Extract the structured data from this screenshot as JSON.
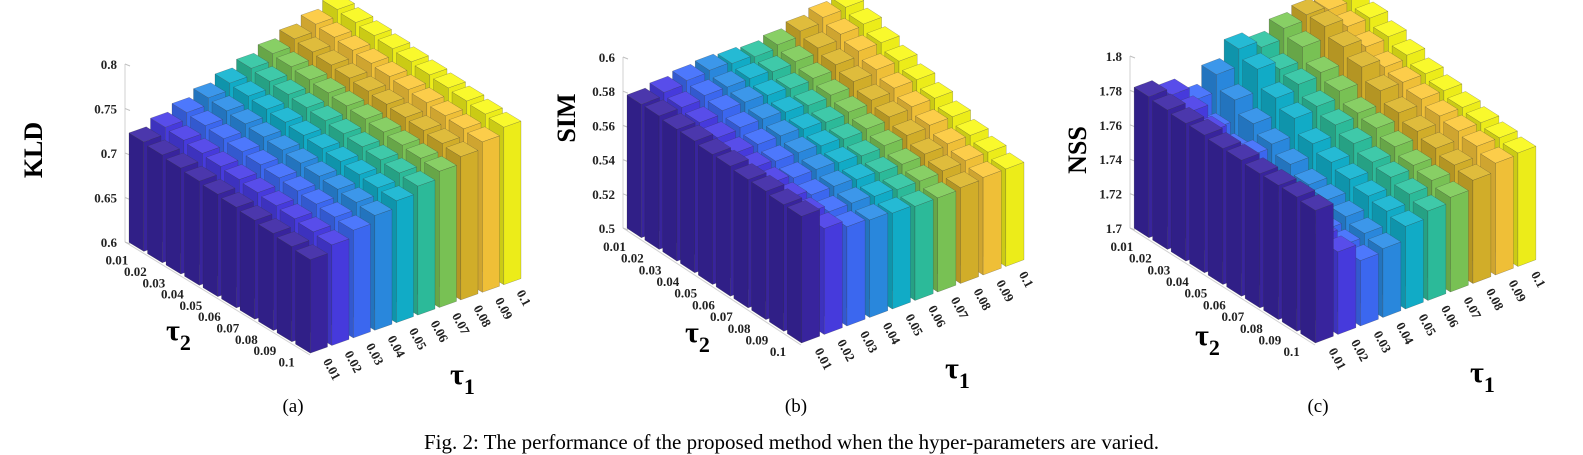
{
  "caption": "Fig. 2: The performance of the proposed method when the hyper-parameters are varied.",
  "panels": [
    {
      "label": "(a)"
    },
    {
      "label": "(b)"
    },
    {
      "label": "(c)"
    }
  ],
  "colors": [
    "#3b26a5",
    "#4a3de8",
    "#3e6cfc",
    "#2b8ee8",
    "#12b4d0",
    "#2ec4a1",
    "#7ecb58",
    "#dcb62b",
    "#fcc93a",
    "#f8f81a"
  ],
  "chart_data": [
    {
      "type": "bar3d",
      "zlabel": "KLD",
      "xlabel": "τ1",
      "ylabel": "τ2",
      "x_categories": [
        "0.01",
        "0.02",
        "0.03",
        "0.04",
        "0.05",
        "0.06",
        "0.07",
        "0.08",
        "0.09",
        "0.1"
      ],
      "y_categories": [
        "0.01",
        "0.02",
        "0.03",
        "0.04",
        "0.05",
        "0.06",
        "0.07",
        "0.08",
        "0.09",
        "0.1"
      ],
      "zlim": [
        0.6,
        0.8
      ],
      "zticks": [
        "0.6",
        "0.65",
        "0.7",
        "0.75",
        "0.8"
      ],
      "values": [
        [
          0.723,
          0.731,
          0.739,
          0.747,
          0.755,
          0.763,
          0.771,
          0.779,
          0.787,
          0.795
        ],
        [
          0.721,
          0.729,
          0.737,
          0.745,
          0.753,
          0.761,
          0.769,
          0.777,
          0.785,
          0.793
        ],
        [
          0.719,
          0.727,
          0.735,
          0.743,
          0.751,
          0.759,
          0.767,
          0.775,
          0.783,
          0.791
        ],
        [
          0.717,
          0.725,
          0.733,
          0.741,
          0.749,
          0.757,
          0.765,
          0.773,
          0.781,
          0.789
        ],
        [
          0.715,
          0.723,
          0.731,
          0.739,
          0.747,
          0.755,
          0.763,
          0.771,
          0.779,
          0.787
        ],
        [
          0.713,
          0.721,
          0.729,
          0.737,
          0.745,
          0.753,
          0.761,
          0.769,
          0.777,
          0.785
        ],
        [
          0.711,
          0.719,
          0.727,
          0.735,
          0.743,
          0.751,
          0.759,
          0.767,
          0.775,
          0.783
        ],
        [
          0.709,
          0.717,
          0.725,
          0.733,
          0.741,
          0.749,
          0.757,
          0.765,
          0.773,
          0.781
        ],
        [
          0.707,
          0.715,
          0.723,
          0.731,
          0.739,
          0.747,
          0.755,
          0.763,
          0.771,
          0.779
        ],
        [
          0.705,
          0.713,
          0.721,
          0.729,
          0.737,
          0.745,
          0.753,
          0.761,
          0.769,
          0.777
        ]
      ]
    },
    {
      "type": "bar3d",
      "zlabel": "SIM",
      "xlabel": "τ1",
      "ylabel": "τ2",
      "x_categories": [
        "0.01",
        "0.02",
        "0.03",
        "0.04",
        "0.05",
        "0.06",
        "0.07",
        "0.08",
        "0.09",
        "0.1"
      ],
      "y_categories": [
        "0.01",
        "0.02",
        "0.03",
        "0.04",
        "0.05",
        "0.06",
        "0.07",
        "0.08",
        "0.09",
        "0.1"
      ],
      "zlim": [
        0.5,
        0.6
      ],
      "zticks": [
        "0.5",
        "0.52",
        "0.54",
        "0.56",
        "0.58",
        "0.6"
      ],
      "values": [
        [
          0.578,
          0.58,
          0.582,
          0.583,
          0.582,
          0.581,
          0.583,
          0.586,
          0.589,
          0.59
        ],
        [
          0.578,
          0.578,
          0.58,
          0.58,
          0.58,
          0.579,
          0.58,
          0.583,
          0.586,
          0.587
        ],
        [
          0.577,
          0.576,
          0.578,
          0.578,
          0.577,
          0.576,
          0.577,
          0.58,
          0.583,
          0.583
        ],
        [
          0.577,
          0.574,
          0.575,
          0.575,
          0.574,
          0.573,
          0.574,
          0.577,
          0.579,
          0.579
        ],
        [
          0.576,
          0.572,
          0.572,
          0.572,
          0.571,
          0.57,
          0.571,
          0.573,
          0.575,
          0.575
        ],
        [
          0.576,
          0.57,
          0.569,
          0.569,
          0.568,
          0.567,
          0.568,
          0.57,
          0.571,
          0.571
        ],
        [
          0.575,
          0.568,
          0.566,
          0.566,
          0.565,
          0.564,
          0.565,
          0.566,
          0.567,
          0.567
        ],
        [
          0.575,
          0.566,
          0.563,
          0.563,
          0.562,
          0.561,
          0.561,
          0.562,
          0.563,
          0.563
        ],
        [
          0.574,
          0.564,
          0.56,
          0.56,
          0.559,
          0.558,
          0.558,
          0.559,
          0.56,
          0.56
        ],
        [
          0.574,
          0.562,
          0.558,
          0.557,
          0.556,
          0.555,
          0.555,
          0.556,
          0.557,
          0.557
        ]
      ]
    },
    {
      "type": "bar3d",
      "zlabel": "NSS",
      "xlabel": "τ1",
      "ylabel": "τ2",
      "x_categories": [
        "0.01",
        "0.02",
        "0.03",
        "0.04",
        "0.05",
        "0.06",
        "0.07",
        "0.08",
        "0.09",
        "0.1"
      ],
      "y_categories": [
        "0.01",
        "0.02",
        "0.03",
        "0.04",
        "0.05",
        "0.06",
        "0.07",
        "0.08",
        "0.09",
        "0.1"
      ],
      "zlim": [
        1.7,
        1.8
      ],
      "zticks": [
        "1.7",
        "1.72",
        "1.74",
        "1.76",
        "1.78",
        "1.8"
      ],
      "values": [
        [
          1.782,
          1.778,
          1.77,
          1.78,
          1.79,
          1.786,
          1.792,
          1.795,
          1.793,
          1.796
        ],
        [
          1.781,
          1.775,
          1.76,
          1.772,
          1.785,
          1.78,
          1.788,
          1.795,
          1.79,
          1.79
        ],
        [
          1.78,
          1.77,
          1.755,
          1.765,
          1.775,
          1.778,
          1.78,
          1.79,
          1.785,
          1.786
        ],
        [
          1.78,
          1.765,
          1.758,
          1.76,
          1.77,
          1.772,
          1.776,
          1.785,
          1.78,
          1.782
        ],
        [
          1.779,
          1.76,
          1.75,
          1.755,
          1.762,
          1.768,
          1.77,
          1.778,
          1.778,
          1.778
        ],
        [
          1.779,
          1.758,
          1.748,
          1.75,
          1.758,
          1.764,
          1.768,
          1.772,
          1.775,
          1.775
        ],
        [
          1.778,
          1.755,
          1.745,
          1.748,
          1.755,
          1.76,
          1.764,
          1.768,
          1.772,
          1.772
        ],
        [
          1.778,
          1.752,
          1.742,
          1.745,
          1.752,
          1.758,
          1.76,
          1.765,
          1.77,
          1.77
        ],
        [
          1.778,
          1.75,
          1.74,
          1.742,
          1.75,
          1.755,
          1.758,
          1.762,
          1.768,
          1.768
        ],
        [
          1.777,
          1.748,
          1.738,
          1.74,
          1.748,
          1.752,
          1.755,
          1.76,
          1.765,
          1.766
        ]
      ]
    }
  ]
}
